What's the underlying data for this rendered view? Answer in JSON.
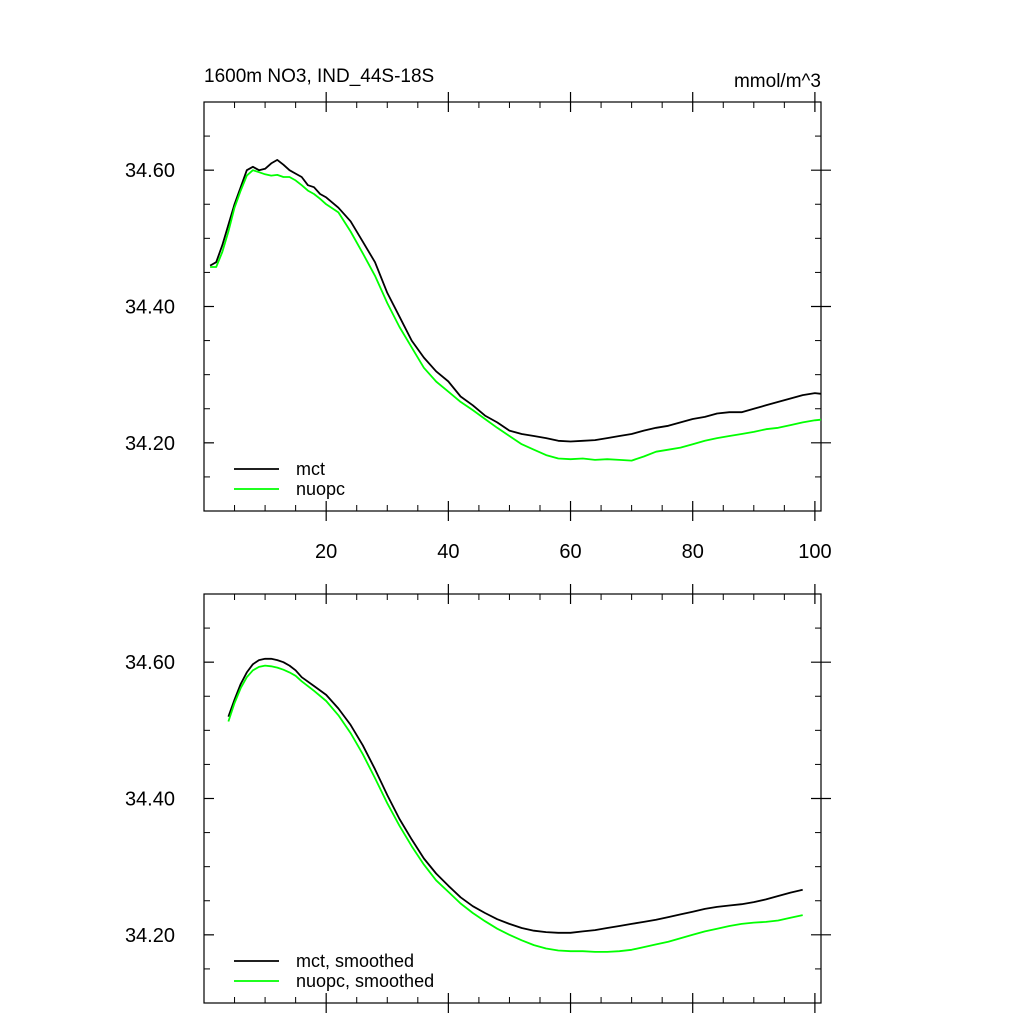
{
  "chart_data": [
    {
      "type": "line",
      "title": "1600m NO3, IND_44S-18S",
      "units": "mmol/m^3",
      "xlim": [
        0,
        101
      ],
      "ylim": [
        34.1,
        34.7
      ],
      "x_ticks": [
        20,
        40,
        60,
        80,
        100
      ],
      "x_tick_labels": [
        "20",
        "40",
        "60",
        "80",
        "100"
      ],
      "y_ticks": [
        34.2,
        34.4,
        34.6
      ],
      "y_tick_labels": [
        "34.20",
        "34.40",
        "34.60"
      ],
      "legend_position": "bottom-left",
      "series": [
        {
          "name": "mct",
          "color": "#000000",
          "x": [
            1,
            2,
            3,
            4,
            5,
            6,
            7,
            8,
            9,
            10,
            11,
            12,
            13,
            14,
            15,
            16,
            17,
            18,
            19,
            20,
            22,
            24,
            26,
            28,
            30,
            32,
            34,
            36,
            38,
            40,
            42,
            44,
            46,
            48,
            50,
            52,
            54,
            56,
            58,
            60,
            62,
            64,
            66,
            68,
            70,
            72,
            74,
            76,
            78,
            80,
            82,
            84,
            86,
            88,
            90,
            92,
            94,
            96,
            98,
            100,
            101
          ],
          "values": [
            34.46,
            34.465,
            34.49,
            34.52,
            34.55,
            34.575,
            34.6,
            34.605,
            34.6,
            34.602,
            34.61,
            34.615,
            34.608,
            34.6,
            34.595,
            34.59,
            34.578,
            34.575,
            34.565,
            34.56,
            34.545,
            34.525,
            34.495,
            34.465,
            34.42,
            34.385,
            34.35,
            34.325,
            34.305,
            34.29,
            34.268,
            34.255,
            34.24,
            34.23,
            34.218,
            34.213,
            34.21,
            34.207,
            34.203,
            34.202,
            34.203,
            34.204,
            34.207,
            34.21,
            34.213,
            34.218,
            34.222,
            34.225,
            34.23,
            34.235,
            34.238,
            34.243,
            34.245,
            34.245,
            34.25,
            34.255,
            34.26,
            34.265,
            34.27,
            34.273,
            34.272
          ]
        },
        {
          "name": "nuopc",
          "color": "#00ff00",
          "x": [
            1,
            2,
            3,
            4,
            5,
            6,
            7,
            8,
            9,
            10,
            11,
            12,
            13,
            14,
            15,
            16,
            17,
            18,
            19,
            20,
            22,
            24,
            26,
            28,
            30,
            32,
            34,
            36,
            38,
            40,
            42,
            44,
            46,
            48,
            50,
            52,
            54,
            56,
            58,
            60,
            62,
            64,
            66,
            68,
            70,
            72,
            74,
            76,
            78,
            80,
            82,
            84,
            86,
            88,
            90,
            92,
            94,
            96,
            98,
            100,
            101
          ],
          "values": [
            34.458,
            34.458,
            34.48,
            34.51,
            34.545,
            34.57,
            34.592,
            34.6,
            34.597,
            34.594,
            34.592,
            34.593,
            34.59,
            34.59,
            34.585,
            34.578,
            34.57,
            34.565,
            34.558,
            34.55,
            34.538,
            34.51,
            34.478,
            34.445,
            34.405,
            34.37,
            34.34,
            34.31,
            34.29,
            34.275,
            34.26,
            34.248,
            34.235,
            34.222,
            34.21,
            34.198,
            34.19,
            34.182,
            34.177,
            34.176,
            34.177,
            34.175,
            34.176,
            34.175,
            34.174,
            34.18,
            34.187,
            34.19,
            34.193,
            34.198,
            34.203,
            34.207,
            34.21,
            34.213,
            34.216,
            34.22,
            34.222,
            34.226,
            34.23,
            34.233,
            34.234
          ]
        }
      ]
    },
    {
      "type": "line",
      "title": "",
      "units": "",
      "xlim": [
        0,
        101
      ],
      "ylim": [
        34.1,
        34.7
      ],
      "x_ticks": [
        20,
        40,
        60,
        80,
        100
      ],
      "x_tick_labels": [],
      "y_ticks": [
        34.2,
        34.4,
        34.6
      ],
      "y_tick_labels": [
        "34.20",
        "34.40",
        "34.60"
      ],
      "legend_position": "bottom-left",
      "series": [
        {
          "name": "mct, smoothed",
          "color": "#000000",
          "x": [
            4,
            5,
            6,
            7,
            8,
            9,
            10,
            11,
            12,
            13,
            14,
            15,
            16,
            18,
            20,
            22,
            24,
            26,
            28,
            30,
            32,
            34,
            36,
            38,
            40,
            42,
            44,
            46,
            48,
            50,
            52,
            54,
            56,
            58,
            60,
            62,
            64,
            66,
            68,
            70,
            72,
            74,
            76,
            78,
            80,
            82,
            84,
            86,
            88,
            90,
            92,
            94,
            96,
            98
          ],
          "values": [
            34.52,
            34.545,
            34.568,
            34.585,
            34.597,
            34.603,
            34.605,
            34.605,
            34.603,
            34.6,
            34.595,
            34.588,
            34.578,
            34.565,
            34.552,
            34.532,
            34.508,
            34.478,
            34.443,
            34.405,
            34.37,
            34.34,
            34.312,
            34.29,
            34.272,
            34.255,
            34.242,
            34.232,
            34.223,
            34.216,
            34.21,
            34.206,
            34.204,
            34.203,
            34.203,
            34.205,
            34.207,
            34.21,
            34.213,
            34.216,
            34.219,
            34.222,
            34.226,
            34.23,
            34.234,
            34.238,
            34.241,
            34.243,
            34.245,
            34.248,
            34.252,
            34.257,
            34.262,
            34.266
          ]
        },
        {
          "name": "nuopc, smoothed",
          "color": "#00ff00",
          "x": [
            4,
            5,
            6,
            7,
            8,
            9,
            10,
            11,
            12,
            13,
            14,
            15,
            16,
            18,
            20,
            22,
            24,
            26,
            28,
            30,
            32,
            34,
            36,
            38,
            40,
            42,
            44,
            46,
            48,
            50,
            52,
            54,
            56,
            58,
            60,
            62,
            64,
            66,
            68,
            70,
            72,
            74,
            76,
            78,
            80,
            82,
            84,
            86,
            88,
            90,
            92,
            94,
            96,
            98
          ],
          "values": [
            34.513,
            34.54,
            34.562,
            34.578,
            34.588,
            34.593,
            34.595,
            34.594,
            34.592,
            34.589,
            34.585,
            34.58,
            34.572,
            34.558,
            34.543,
            34.522,
            34.496,
            34.465,
            34.43,
            34.393,
            34.36,
            34.33,
            34.303,
            34.28,
            34.263,
            34.246,
            34.232,
            34.22,
            34.209,
            34.2,
            34.192,
            34.185,
            34.18,
            34.177,
            34.176,
            34.176,
            34.175,
            34.175,
            34.176,
            34.178,
            34.182,
            34.186,
            34.19,
            34.195,
            34.2,
            34.205,
            34.209,
            34.213,
            34.216,
            34.218,
            34.219,
            34.221,
            34.225,
            34.229
          ]
        }
      ]
    }
  ]
}
